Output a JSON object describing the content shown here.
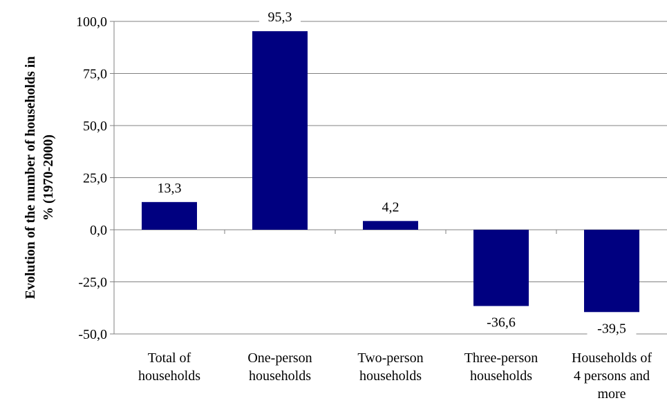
{
  "chart_data": {
    "type": "bar",
    "categories": [
      [
        "Total of",
        "households"
      ],
      [
        "One-person",
        "households"
      ],
      [
        "Two-person",
        "households"
      ],
      [
        "Three-person",
        "households"
      ],
      [
        "Households of",
        "4 persons and",
        "more"
      ]
    ],
    "values": [
      13.3,
      95.3,
      4.2,
      -36.6,
      -39.5
    ],
    "data_labels": [
      "13,3",
      "95,3",
      "4,2",
      "-36,6",
      "-39,5"
    ],
    "ylabel": [
      "Evolution of the number of households in",
      "%  (1970-2000)"
    ],
    "ylim": [
      -50,
      100
    ],
    "y_ticks": [
      -50,
      -25,
      0,
      25,
      50,
      75,
      100
    ],
    "y_tick_labels": [
      "-50,0",
      "-25,0",
      "0,0",
      "25,0",
      "50,0",
      "75,0",
      "100,0"
    ],
    "bar_color": "#000080",
    "gridlines": true,
    "legend": "none"
  }
}
